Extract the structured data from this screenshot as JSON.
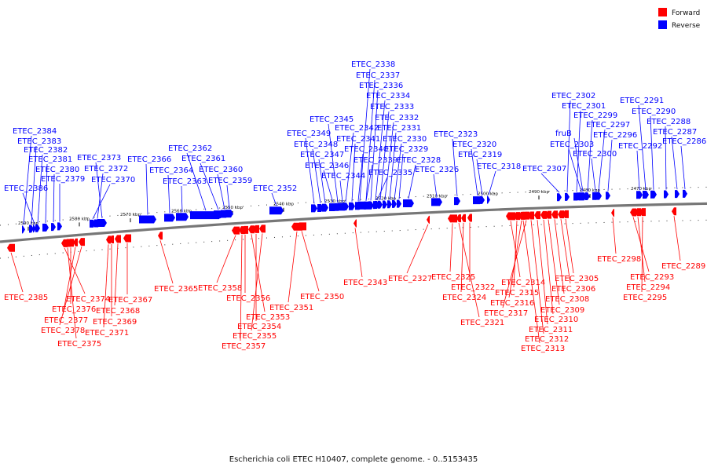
{
  "legend": {
    "forward_label": "Forward",
    "reverse_label": "Reverse",
    "forward_color": "#ff0000",
    "reverse_color": "#0000ff"
  },
  "caption": "Escherichia coli ETEC H10407, complete genome. - 0..5153435",
  "axis": {
    "unit": "kbp",
    "ticks": [
      {
        "kbp": 2590,
        "label": "2590 kbp"
      },
      {
        "kbp": 2580,
        "label": "2580 kbp"
      },
      {
        "kbp": 2570,
        "label": "2570 kbp"
      },
      {
        "kbp": 2560,
        "label": "2560 kbp"
      },
      {
        "kbp": 2550,
        "label": "2550 kbp"
      },
      {
        "kbp": 2540,
        "label": "2540 kbp"
      },
      {
        "kbp": 2530,
        "label": "2530 kbp"
      },
      {
        "kbp": 2520,
        "label": "2520 kbp"
      },
      {
        "kbp": 2510,
        "label": "2510 kbp"
      },
      {
        "kbp": 2500,
        "label": "2500 kbp"
      },
      {
        "kbp": 2490,
        "label": "2490 kbp"
      },
      {
        "kbp": 2480,
        "label": "2480 kbp"
      },
      {
        "kbp": 2470,
        "label": "2470 kbp"
      }
    ]
  },
  "reverse_genes": [
    "ETEC_2338",
    "ETEC_2337",
    "ETEC_2336",
    "ETEC_2334",
    "ETEC_2333",
    "ETEC_2332",
    "ETEC_2331",
    "ETEC_2330",
    "ETEC_2329",
    "ETEC_2328",
    "ETEC_2335",
    "ETEC_2339",
    "ETEC_2340",
    "ETEC_2341",
    "ETEC_2342",
    "ETEC_2345",
    "ETEC_2349",
    "ETEC_2348",
    "ETEC_2347",
    "ETEC_2346",
    "ETEC_2344",
    "ETEC_2352",
    "ETEC_2362",
    "ETEC_2361",
    "ETEC_2360",
    "ETEC_2359",
    "ETEC_2363",
    "ETEC_2364",
    "ETEC_2366",
    "ETEC_2373",
    "ETEC_2372",
    "ETEC_2370",
    "ETEC_2384",
    "ETEC_2383",
    "ETEC_2382",
    "ETEC_2381",
    "ETEC_2380",
    "ETEC_2379",
    "ETEC_2386",
    "ETEC_2323",
    "ETEC_2320",
    "ETEC_2319",
    "ETEC_2318",
    "ETEC_2326",
    "ETEC_2307",
    "ETEC_2302",
    "ETEC_2301",
    "ETEC_2299",
    "ETEC_2297",
    "ETEC_2296",
    "fruB",
    "ETEC_2303",
    "ETEC_2300",
    "ETEC_2291",
    "ETEC_2290",
    "ETEC_2288",
    "ETEC_2287",
    "ETEC_2286",
    "ETEC_2292"
  ],
  "forward_genes": [
    "ETEC_2385",
    "ETEC_2374",
    "ETEC_2376",
    "ETEC_2377",
    "ETEC_2378",
    "ETEC_2375",
    "ETEC_2367",
    "ETEC_2368",
    "ETEC_2369",
    "ETEC_2371",
    "ETEC_2365",
    "ETEC_2358",
    "ETEC_2356",
    "ETEC_2353",
    "ETEC_2354",
    "ETEC_2355",
    "ETEC_2357",
    "ETEC_2351",
    "ETEC_2350",
    "ETEC_2343",
    "ETEC_2327",
    "ETEC_2325",
    "ETEC_2322",
    "ETEC_2324",
    "ETEC_2321",
    "ETEC_2314",
    "ETEC_2315",
    "ETEC_2316",
    "ETEC_2317",
    "ETEC_2305",
    "ETEC_2306",
    "ETEC_2308",
    "ETEC_2309",
    "ETEC_2310",
    "ETEC_2311",
    "ETEC_2312",
    "ETEC_2313",
    "ETEC_2298",
    "ETEC_2293",
    "ETEC_2294",
    "ETEC_2295",
    "ETEC_2289"
  ]
}
